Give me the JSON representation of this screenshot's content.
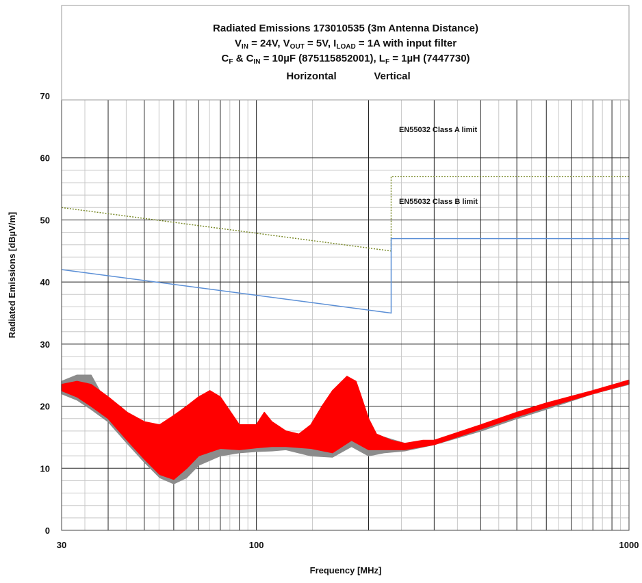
{
  "chart_data": {
    "type": "line",
    "title": {
      "line1": "Radiated Emissions 173010535 (3m Antenna Distance)",
      "line2": {
        "pre": "V",
        "sub1": "IN",
        "mid1": " = 24V, V",
        "sub2": "OUT",
        "mid2": " = 5V, I",
        "sub3": "LOAD",
        "post": " = 1A with input filter"
      },
      "line3": {
        "pre": "C",
        "sub1": "F",
        "mid1": " & C",
        "sub2": "IN",
        "mid2": " = 10µF (875115852001), L",
        "sub3": "F",
        "post": " = 1µH (7447730)"
      }
    },
    "legend": {
      "placement": "top-center",
      "entries": [
        {
          "name": "Horizontal",
          "color": "#ff0000"
        },
        {
          "name": "Vertical",
          "color": "#8c8c8c"
        }
      ]
    },
    "xlabel": "Frequency [MHz]",
    "ylabel": "Radiated Emissions [dBµV/m]",
    "xscale": "log",
    "xlim": [
      30,
      1000
    ],
    "ylim": [
      0,
      70
    ],
    "xticks": [
      30,
      100,
      1000
    ],
    "yticks": [
      0,
      10,
      20,
      30,
      40,
      50,
      60,
      70
    ],
    "grid": true,
    "limits": [
      {
        "name": "EN55032 Class A limit",
        "color": "#7a8a2a",
        "style": "dotted",
        "points": [
          [
            30,
            52
          ],
          [
            230,
            45
          ],
          [
            230,
            57
          ],
          [
            1000,
            57
          ]
        ]
      },
      {
        "name": "EN55032 Class B limit",
        "color": "#5b8fd6",
        "style": "solid",
        "points": [
          [
            30,
            42
          ],
          [
            230,
            35
          ],
          [
            230,
            47
          ],
          [
            1000,
            47
          ]
        ]
      }
    ],
    "series": [
      {
        "name": "Vertical",
        "color": "#8c8c8c",
        "upper": [
          [
            30,
            24
          ],
          [
            33,
            25
          ],
          [
            36,
            25
          ],
          [
            40,
            20
          ],
          [
            45,
            16
          ],
          [
            50,
            13
          ],
          [
            55,
            10
          ],
          [
            60,
            8.5
          ],
          [
            65,
            10
          ],
          [
            70,
            13
          ],
          [
            80,
            14.5
          ],
          [
            90,
            14
          ],
          [
            100,
            13.5
          ],
          [
            110,
            14
          ],
          [
            120,
            15
          ],
          [
            140,
            16
          ],
          [
            160,
            15.5
          ],
          [
            180,
            15.5
          ],
          [
            200,
            16
          ],
          [
            220,
            15
          ],
          [
            250,
            14
          ],
          [
            300,
            14.2
          ],
          [
            400,
            16.5
          ],
          [
            500,
            18.5
          ],
          [
            600,
            20
          ],
          [
            800,
            22.5
          ],
          [
            1000,
            24
          ]
        ],
        "lower": [
          [
            30,
            22
          ],
          [
            33,
            21
          ],
          [
            36,
            19.5
          ],
          [
            40,
            17.5
          ],
          [
            45,
            14
          ],
          [
            50,
            11
          ],
          [
            55,
            8.5
          ],
          [
            60,
            7.5
          ],
          [
            65,
            8.5
          ],
          [
            70,
            10.5
          ],
          [
            80,
            12
          ],
          [
            90,
            12.5
          ],
          [
            100,
            12.7
          ],
          [
            110,
            12.8
          ],
          [
            120,
            13
          ],
          [
            140,
            12
          ],
          [
            160,
            11.8
          ],
          [
            180,
            13.5
          ],
          [
            200,
            12
          ],
          [
            220,
            12.5
          ],
          [
            250,
            12.8
          ],
          [
            300,
            13.8
          ],
          [
            400,
            16
          ],
          [
            500,
            18
          ],
          [
            600,
            19.5
          ],
          [
            800,
            22
          ],
          [
            1000,
            23.5
          ]
        ]
      },
      {
        "name": "Horizontal",
        "color": "#ff0000",
        "upper": [
          [
            30,
            23.5
          ],
          [
            33,
            24
          ],
          [
            36,
            23.5
          ],
          [
            40,
            21.5
          ],
          [
            45,
            19
          ],
          [
            50,
            17.5
          ],
          [
            55,
            17
          ],
          [
            60,
            18.5
          ],
          [
            65,
            20
          ],
          [
            70,
            21.5
          ],
          [
            75,
            22.5
          ],
          [
            80,
            21.5
          ],
          [
            90,
            17
          ],
          [
            100,
            17
          ],
          [
            105,
            19
          ],
          [
            110,
            17.5
          ],
          [
            120,
            16
          ],
          [
            130,
            15.5
          ],
          [
            140,
            17
          ],
          [
            150,
            20
          ],
          [
            160,
            22.5
          ],
          [
            175,
            24.8
          ],
          [
            185,
            24
          ],
          [
            190,
            22
          ],
          [
            200,
            18
          ],
          [
            210,
            15.5
          ],
          [
            230,
            14.5
          ],
          [
            250,
            14
          ],
          [
            280,
            14.5
          ],
          [
            300,
            14.5
          ],
          [
            400,
            17
          ],
          [
            500,
            19
          ],
          [
            600,
            20.5
          ],
          [
            800,
            22.5
          ],
          [
            1000,
            24.2
          ]
        ],
        "lower": [
          [
            30,
            22.5
          ],
          [
            33,
            21.5
          ],
          [
            36,
            20
          ],
          [
            40,
            18
          ],
          [
            45,
            14.5
          ],
          [
            50,
            11.5
          ],
          [
            55,
            9
          ],
          [
            60,
            8.2
          ],
          [
            65,
            10
          ],
          [
            70,
            12
          ],
          [
            80,
            13.2
          ],
          [
            90,
            13
          ],
          [
            100,
            13.3
          ],
          [
            110,
            13.5
          ],
          [
            120,
            13.5
          ],
          [
            140,
            13.2
          ],
          [
            160,
            12.5
          ],
          [
            180,
            14.5
          ],
          [
            200,
            13
          ],
          [
            220,
            13
          ],
          [
            250,
            13
          ],
          [
            300,
            13.8
          ],
          [
            400,
            16.3
          ],
          [
            500,
            18.3
          ],
          [
            600,
            19.8
          ],
          [
            800,
            22
          ],
          [
            1000,
            23.6
          ]
        ]
      }
    ]
  }
}
